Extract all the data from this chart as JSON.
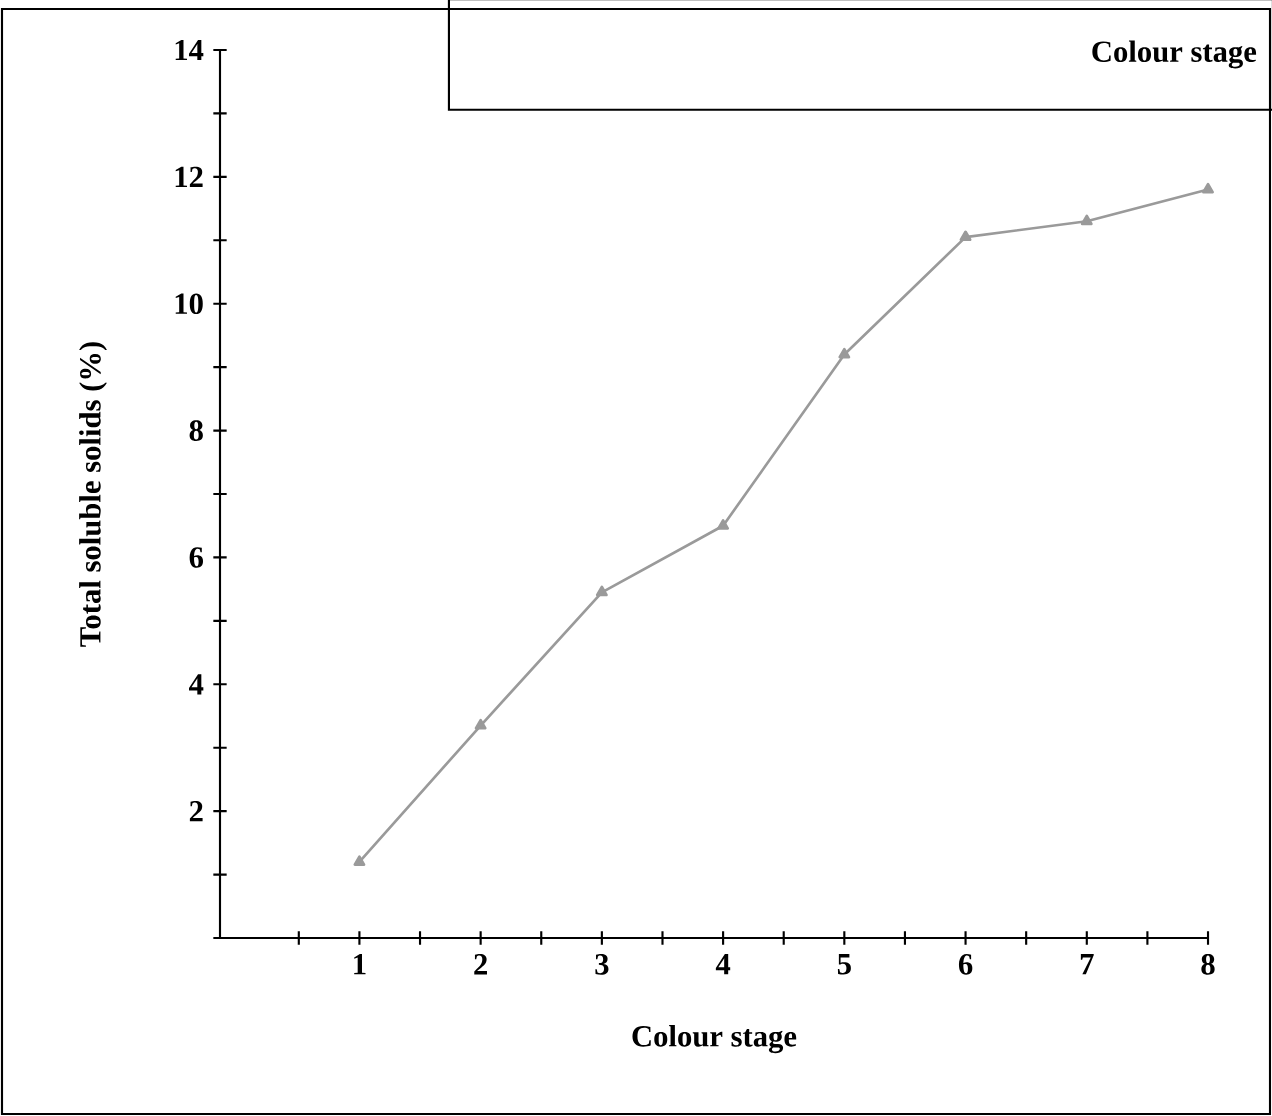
{
  "chart_data": {
    "type": "line",
    "xlabel": "Colour stage",
    "ylabel": "Total soluble solids (%)",
    "annotations": [
      "Colour stage"
    ],
    "x": [
      1,
      2,
      3,
      4,
      5,
      6,
      7,
      8
    ],
    "series": [
      {
        "color": "#9a9a9a",
        "values": [
          1.2,
          3.35,
          5.45,
          6.5,
          9.2,
          11.05,
          11.3,
          11.8
        ]
      }
    ],
    "xlim": [
      -0.15,
      8
    ],
    "xticks": [
      {
        "value": 0.5,
        "label": null
      },
      1,
      {
        "value": 1.5,
        "label": null
      },
      2,
      {
        "value": 2.5,
        "label": null
      },
      3,
      {
        "value": 3.5,
        "label": null
      },
      4,
      {
        "value": 4.5,
        "label": null
      },
      5,
      {
        "value": 5.5,
        "label": null
      },
      6,
      {
        "value": 6.5,
        "label": null
      },
      7,
      {
        "value": 7.5,
        "label": null
      },
      8
    ],
    "ylim": [
      0,
      14
    ],
    "yticks": [
      {
        "value": 0,
        "label": null
      },
      {
        "value": 1,
        "label": null
      },
      2,
      {
        "value": 3,
        "label": null
      },
      4,
      {
        "value": 5,
        "label": null
      },
      6,
      {
        "value": 7,
        "label": null
      },
      8,
      {
        "value": 9,
        "label": null
      },
      10,
      {
        "value": 11,
        "label": null
      },
      12,
      {
        "value": 13,
        "label": null
      },
      14
    ],
    "marker": "triangle",
    "line_style": "solid",
    "grid": false
  }
}
